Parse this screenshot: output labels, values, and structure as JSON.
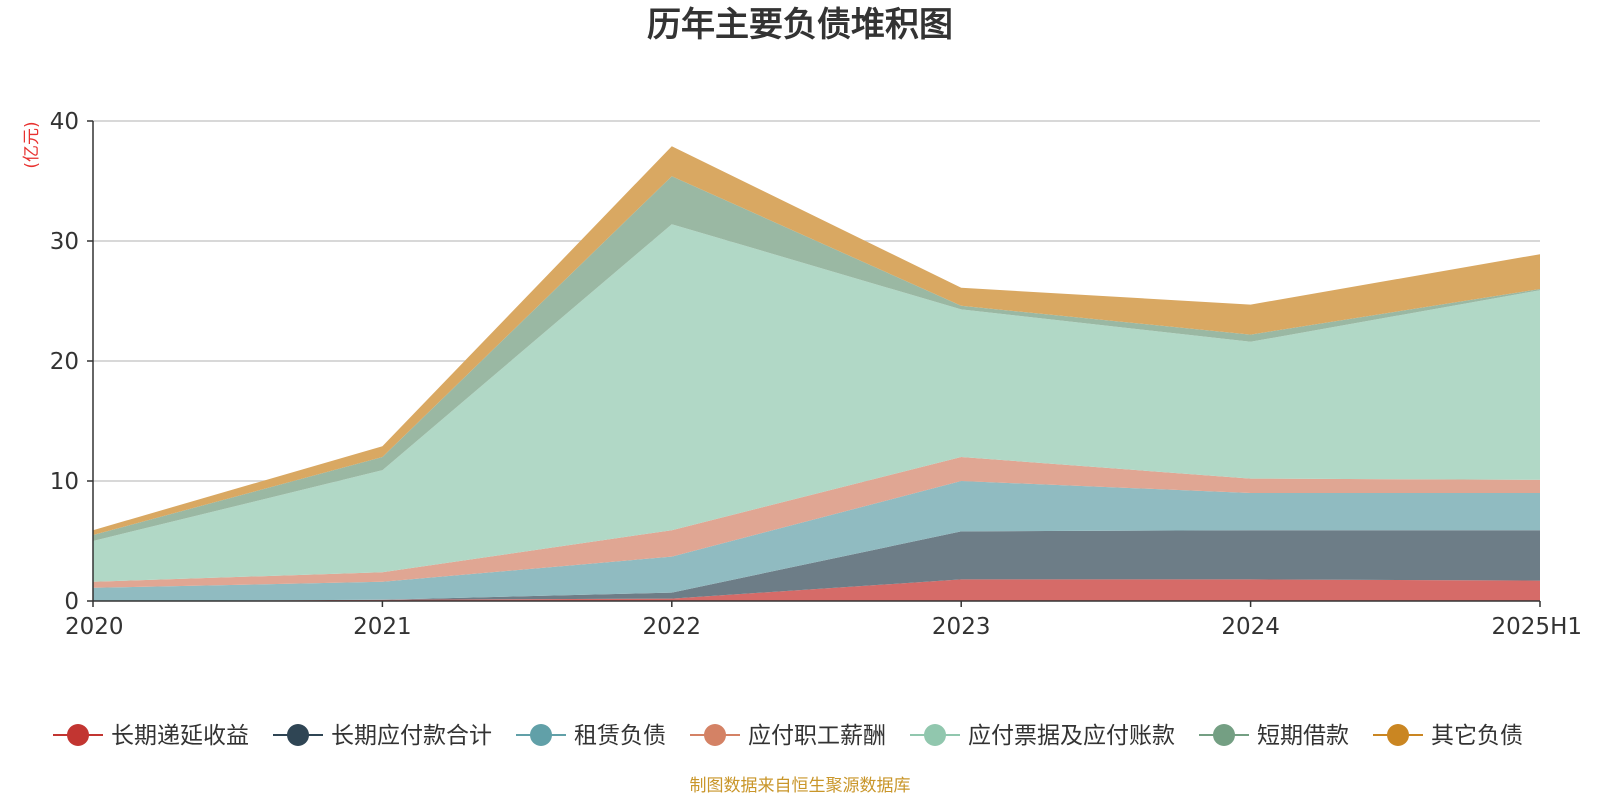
{
  "chart_data": {
    "type": "area",
    "stacked": true,
    "title": "历年主要负债堆积图",
    "ylabel": "(亿元)",
    "ylim": [
      0,
      40
    ],
    "yticks": [
      0,
      10,
      20,
      30,
      40
    ],
    "grid": true,
    "legend_position": "bottom",
    "categories": [
      "2020",
      "2021",
      "2022",
      "2023",
      "2024",
      "2025H1"
    ],
    "series": [
      {
        "name": "长期递延收益",
        "color": "#c23531",
        "fill": "#d66b68",
        "values": [
          0.0,
          0.1,
          0.2,
          1.8,
          1.8,
          1.7
        ]
      },
      {
        "name": "长期应付款合计",
        "color": "#2f4554",
        "fill": "#6d7d87",
        "values": [
          0.0,
          0.0,
          0.5,
          4.0,
          4.1,
          4.2
        ]
      },
      {
        "name": "租赁负债",
        "color": "#61a0a8",
        "fill": "#90bbc1",
        "values": [
          1.1,
          1.5,
          3.0,
          4.2,
          3.1,
          3.1
        ]
      },
      {
        "name": "应付职工薪酬",
        "color": "#d48265",
        "fill": "#e0a693",
        "values": [
          0.5,
          0.8,
          2.2,
          2.0,
          1.2,
          1.1
        ]
      },
      {
        "name": "应付票据及应付账款",
        "color": "#91c7ae",
        "fill": "#b1d8c6",
        "values": [
          3.4,
          8.5,
          25.5,
          12.3,
          11.4,
          15.8
        ]
      },
      {
        "name": "短期借款",
        "color": "#749f83",
        "fill": "#9ab8a3",
        "values": [
          0.5,
          1.1,
          4.0,
          0.3,
          0.6,
          0.1
        ]
      },
      {
        "name": "其它负债",
        "color": "#ca8622",
        "fill": "#d9a862",
        "values": [
          0.4,
          0.9,
          2.5,
          1.5,
          2.5,
          2.9
        ]
      }
    ]
  },
  "source_note": "制图数据来自恒生聚源数据库",
  "colors": {
    "unit_label": "#e8312f",
    "source_note": "#c9962a",
    "grid": "#cccccc",
    "axis": "#333333"
  }
}
